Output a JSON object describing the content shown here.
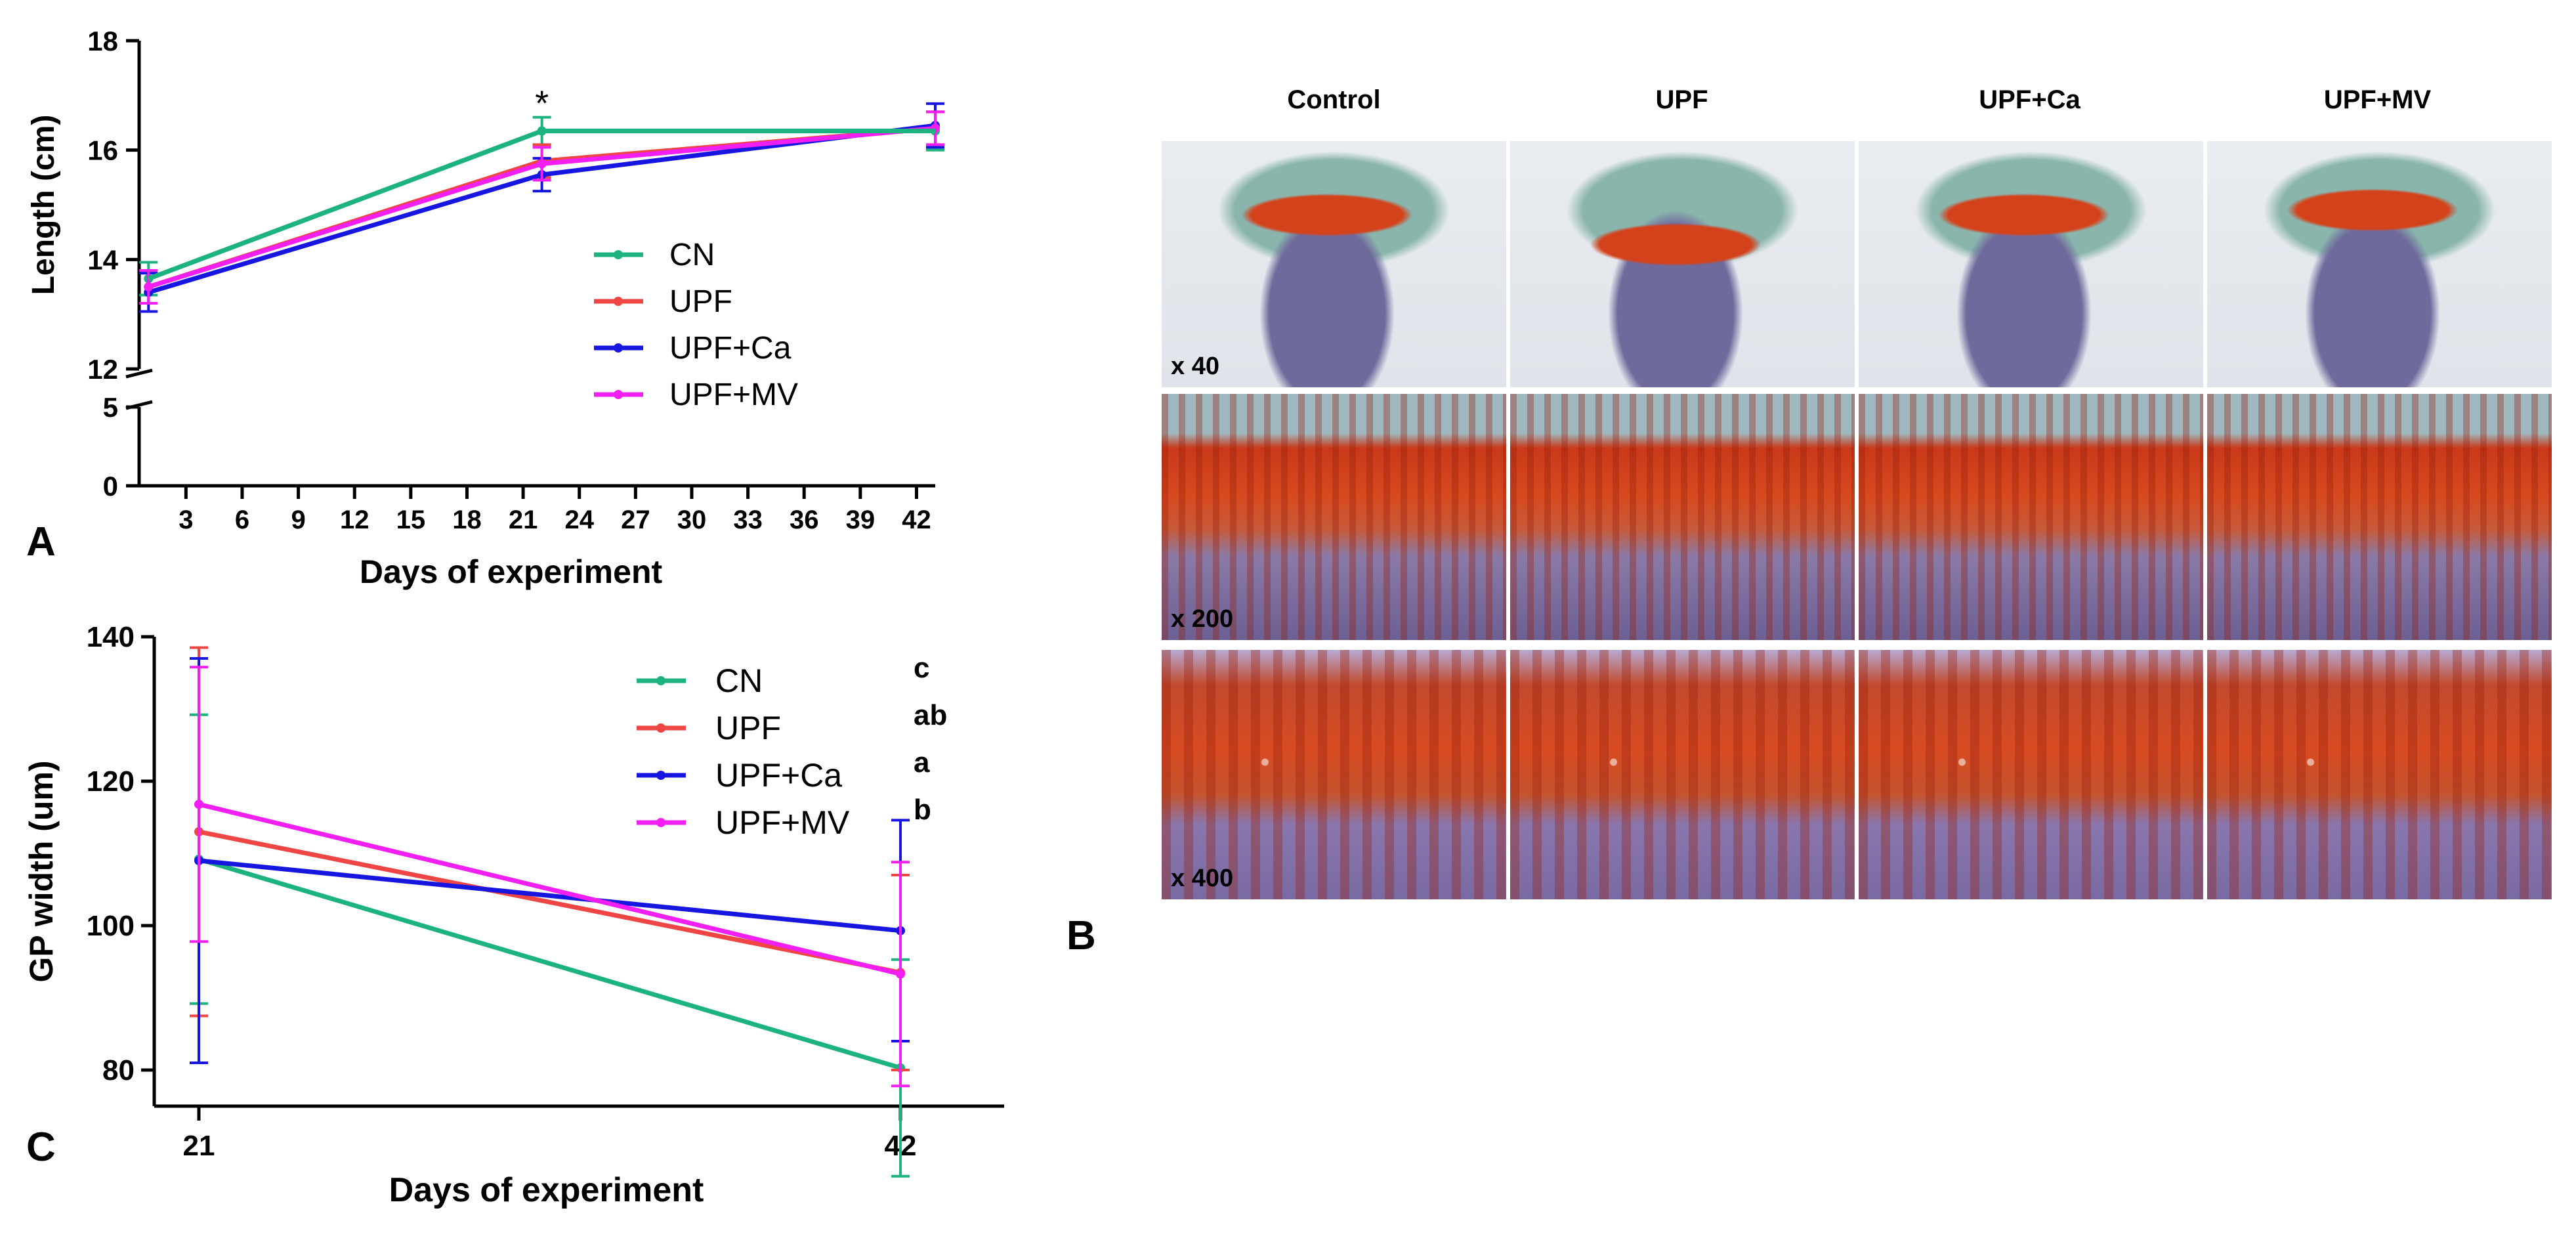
{
  "panels": {
    "a": {
      "letter": "A"
    },
    "b": {
      "letter": "B",
      "columns": [
        "Control",
        "UPF",
        "UPF+Ca",
        "UPF+MV"
      ],
      "magnifications": [
        "x 40",
        "x 200",
        "x 400"
      ]
    },
    "c": {
      "letter": "C"
    }
  },
  "chart_data": [
    {
      "type": "line",
      "panel": "A",
      "xlabel": "Days of experiment",
      "ylabel": "Length (cm)",
      "x_ticks": [
        3,
        6,
        9,
        12,
        15,
        18,
        21,
        24,
        27,
        30,
        33,
        36,
        39,
        42
      ],
      "y_ticks_upper": [
        12,
        14,
        16,
        18
      ],
      "y_ticks_lower": [
        0,
        5
      ],
      "y_axis_break": true,
      "ylim_upper": [
        12,
        18
      ],
      "ylim_lower": [
        0,
        5
      ],
      "xlim": [
        0.5,
        43
      ],
      "annotation": {
        "text": "*",
        "x": 22
      },
      "legend_position": "center-right",
      "series": [
        {
          "name": "CN",
          "color": "#1db37f",
          "x": [
            1,
            22,
            43
          ],
          "y": [
            13.65,
            16.35,
            16.35
          ],
          "err": [
            0.3,
            0.25,
            0.35
          ]
        },
        {
          "name": "UPF",
          "color": "#ef4545",
          "x": [
            1,
            22,
            43
          ],
          "y": [
            13.5,
            15.8,
            16.4
          ],
          "err": [
            0.3,
            0.3,
            0.3
          ]
        },
        {
          "name": "UPF+Ca",
          "color": "#1616e0",
          "x": [
            1,
            22,
            43
          ],
          "y": [
            13.4,
            15.55,
            16.45
          ],
          "err": [
            0.35,
            0.3,
            0.4
          ]
        },
        {
          "name": "UPF+MV",
          "color": "#f21ff2",
          "x": [
            1,
            22,
            43
          ],
          "y": [
            13.5,
            15.75,
            16.4
          ],
          "err": [
            0.3,
            0.3,
            0.3
          ]
        }
      ]
    },
    {
      "type": "line",
      "panel": "C",
      "xlabel": "Days of experiment",
      "ylabel": "GP width (um)",
      "x_ticks": [
        21,
        42
      ],
      "y_ticks": [
        80,
        100,
        120,
        140
      ],
      "ylim": [
        75,
        140
      ],
      "legend_position": "top-right",
      "series": [
        {
          "name": "CN",
          "color": "#1db37f",
          "letter": "c",
          "x": [
            21,
            42
          ],
          "y": [
            109.2,
            80.3
          ],
          "err": [
            20,
            15
          ]
        },
        {
          "name": "UPF",
          "color": "#ef4545",
          "letter": "ab",
          "x": [
            21,
            42
          ],
          "y": [
            113,
            93.5
          ],
          "err": [
            25.5,
            13.5
          ]
        },
        {
          "name": "UPF+Ca",
          "color": "#1616e0",
          "letter": "a",
          "x": [
            21,
            42
          ],
          "y": [
            109,
            99.3
          ],
          "err": [
            28,
            15.3
          ]
        },
        {
          "name": "UPF+MV",
          "color": "#f21ff2",
          "letter": "b",
          "x": [
            21,
            42
          ],
          "y": [
            116.8,
            93.3
          ],
          "err": [
            19,
            15.5
          ]
        }
      ]
    }
  ]
}
